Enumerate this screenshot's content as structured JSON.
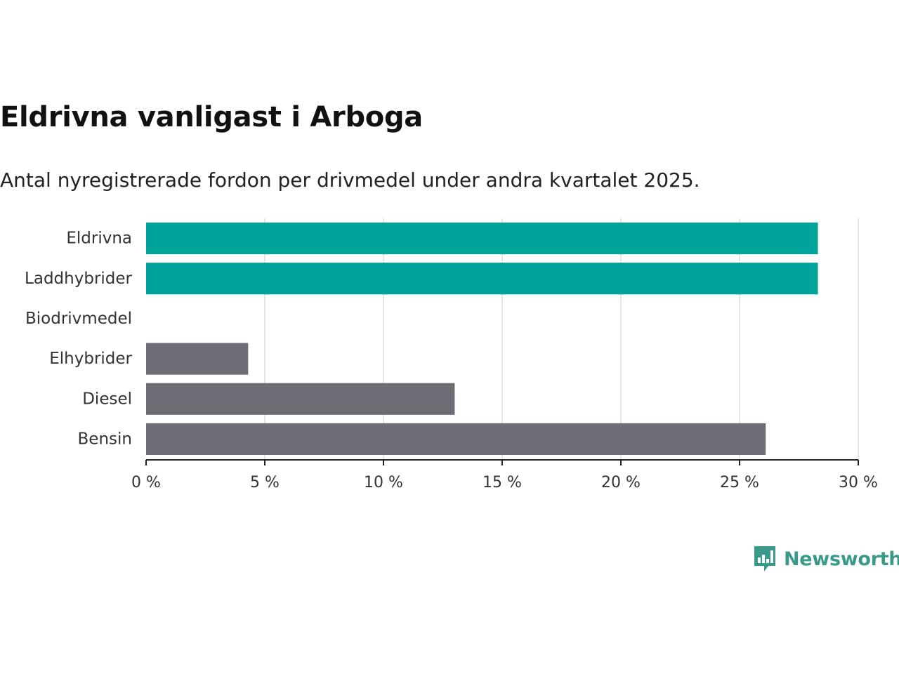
{
  "title": "Eldrivna vanligast i Arboga",
  "subtitle": "Antal nyregistrerade fordon per drivmedel under andra kvartalet 2025.",
  "brand": {
    "name": "Newsworthy",
    "icon": "bar-chart-speech-bubble-icon",
    "color": "#3a9a8a"
  },
  "chart_data": {
    "type": "bar",
    "orientation": "horizontal",
    "categories": [
      "Eldrivna",
      "Laddhybrider",
      "Biodrivmedel",
      "Elhybrider",
      "Diesel",
      "Bensin"
    ],
    "values": [
      28.3,
      28.3,
      0,
      4.3,
      13.0,
      26.1
    ],
    "colors": [
      "#00a39a",
      "#00a39a",
      "#00a39a",
      "#6e6d75",
      "#6e6d75",
      "#6e6d75"
    ],
    "xlim": [
      0,
      30
    ],
    "x_ticks": [
      0,
      5,
      10,
      15,
      20,
      25,
      30
    ],
    "x_tick_labels": [
      "0 %",
      "5 %",
      "10 %",
      "15 %",
      "20 %",
      "25 %",
      "30 %"
    ],
    "grid": true,
    "legend": "none"
  }
}
